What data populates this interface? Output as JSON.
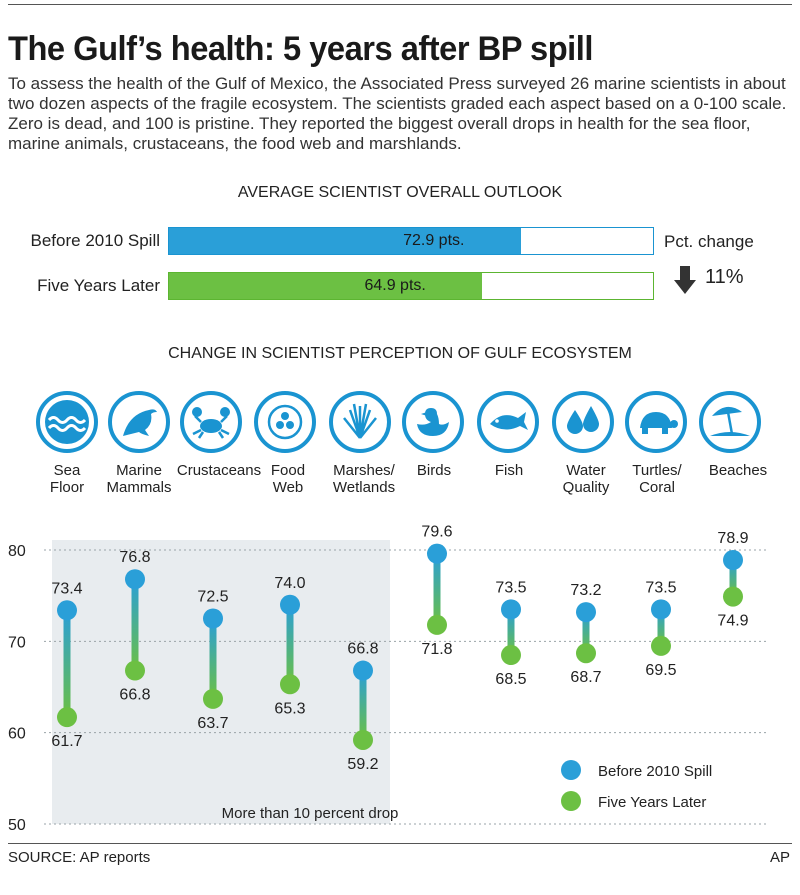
{
  "title": "The Gulf’s health: 5 years after BP spill",
  "intro": "To assess the health of the Gulf of Mexico, the Associated Press surveyed 26 marine scientists in about two dozen aspects of the fragile ecosystem. The scientists graded each aspect based on a 0-100 scale. Zero is dead, and 100 is pristine. They reported the biggest overall drops in health for the sea floor, marine animals, crustaceans, the food web and marshlands.",
  "outlook": {
    "heading": "AVERAGE SCIENTIST OVERALL OUTLOOK",
    "before_label": "Before 2010 Spill",
    "before_value": 72.9,
    "before_text": "72.9 pts.",
    "after_label": "Five Years Later",
    "after_value": 64.9,
    "after_text": "64.9 pts.",
    "pct_label": "Pct. change",
    "pct_value": "11%",
    "max": 100
  },
  "perception_heading": "CHANGE IN SCIENTIST PERCEPTION OF GULF ECOSYSTEM",
  "categories": [
    {
      "line1": "Sea",
      "line2": "Floor",
      "icon": "waves-icon"
    },
    {
      "line1": "Marine",
      "line2": "Mammals",
      "icon": "dolphin-icon"
    },
    {
      "line1": "Crustaceans",
      "line2": "",
      "icon": "crab-icon"
    },
    {
      "line1": "Food",
      "line2": "Web",
      "icon": "food-web-icon"
    },
    {
      "line1": "Marshes/",
      "line2": "Wetlands",
      "icon": "reeds-icon"
    },
    {
      "line1": "Birds",
      "line2": "",
      "icon": "duck-icon"
    },
    {
      "line1": "Fish",
      "line2": "",
      "icon": "fish-icon"
    },
    {
      "line1": "Water",
      "line2": "Quality",
      "icon": "water-drops-icon"
    },
    {
      "line1": "Turtles/",
      "line2": "Coral",
      "icon": "turtle-icon"
    },
    {
      "line1": "Beaches",
      "line2": "",
      "icon": "beach-umbrella-icon"
    }
  ],
  "colors": {
    "before": "#2a9fd8",
    "after": "#6cc043",
    "icon_ring": "#1a94d1",
    "highlight": "#e8ecef"
  },
  "chart_data": {
    "type": "dumbbell",
    "categories": [
      "Sea Floor",
      "Marine Mammals",
      "Crustaceans",
      "Food Web",
      "Marshes/Wetlands",
      "Birds",
      "Fish",
      "Water Quality",
      "Turtles/Coral",
      "Beaches"
    ],
    "series": [
      {
        "name": "Before 2010 Spill",
        "values": [
          73.4,
          76.8,
          72.5,
          74.0,
          66.8,
          79.6,
          73.5,
          73.2,
          73.5,
          78.9
        ]
      },
      {
        "name": "Five Years Later",
        "values": [
          61.7,
          66.8,
          63.7,
          65.3,
          59.2,
          71.8,
          68.5,
          68.7,
          69.5,
          74.9
        ]
      }
    ],
    "value_labels": {
      "before": [
        "73.4",
        "76.8",
        "72.5",
        "74.0",
        "66.8",
        "79.6",
        "73.5",
        "73.2",
        "73.5",
        "78.9"
      ],
      "after": [
        "61.7",
        "66.8",
        "63.7",
        "65.3",
        "59.2",
        "71.8",
        "68.5",
        "68.7",
        "69.5",
        "74.9"
      ]
    },
    "ylim": [
      50,
      80
    ],
    "yticks": [
      "50",
      "60",
      "70",
      "80"
    ],
    "grid": true,
    "legend": "bottom-right",
    "highlight_note": "More than 10 percent drop",
    "highlight_categories": 5
  },
  "footer": {
    "source": "SOURCE: AP reports",
    "credit": "AP"
  }
}
